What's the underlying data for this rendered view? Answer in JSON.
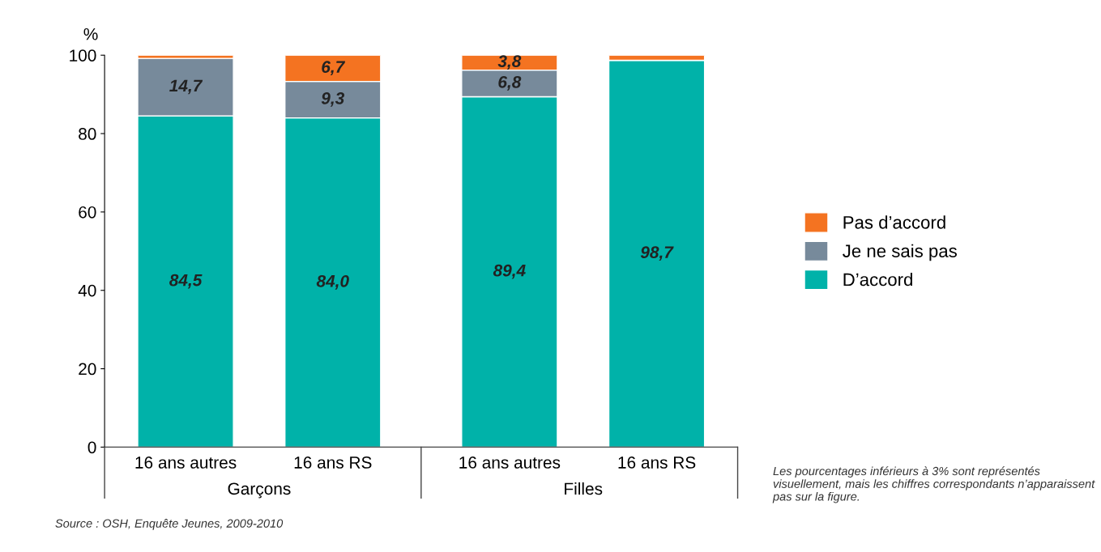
{
  "chart_data": {
    "type": "bar",
    "stacked": true,
    "ylabel": "%",
    "categories": [
      "16 ans autres",
      "16 ans RS",
      "16 ans autres",
      "16 ans RS"
    ],
    "series": [
      {
        "name": "D’accord",
        "color": "#00b2a9",
        "values": [
          84.5,
          84.0,
          89.4,
          98.7
        ],
        "value_labels": [
          "84,5",
          "84,0",
          "89,4",
          "98,7"
        ]
      },
      {
        "name": "Je ne sais pas",
        "color": "#778a9b",
        "values": [
          14.7,
          9.3,
          6.8,
          0.0
        ],
        "value_labels": [
          "14,7",
          "9,3",
          "6,8",
          null
        ]
      },
      {
        "name": "Pas d’accord",
        "color": "#f47321",
        "values": [
          0.8,
          6.7,
          3.8,
          1.3
        ],
        "value_labels": [
          null,
          "6,7",
          "3,8",
          null
        ]
      }
    ],
    "ylim": [
      0,
      100
    ],
    "yticks": [
      0,
      20,
      40,
      60,
      80,
      100
    ],
    "grid": false,
    "legend": "right",
    "annotations": [
      "Garçons",
      "Filles",
      "Les pourcentages inférieurs à 3% sont représentés visuellement, mais les chiffres correspondants n’apparaissent pas sur la figure.",
      "Source : OSH, Enquête Jeunes, 2009-2010"
    ]
  }
}
